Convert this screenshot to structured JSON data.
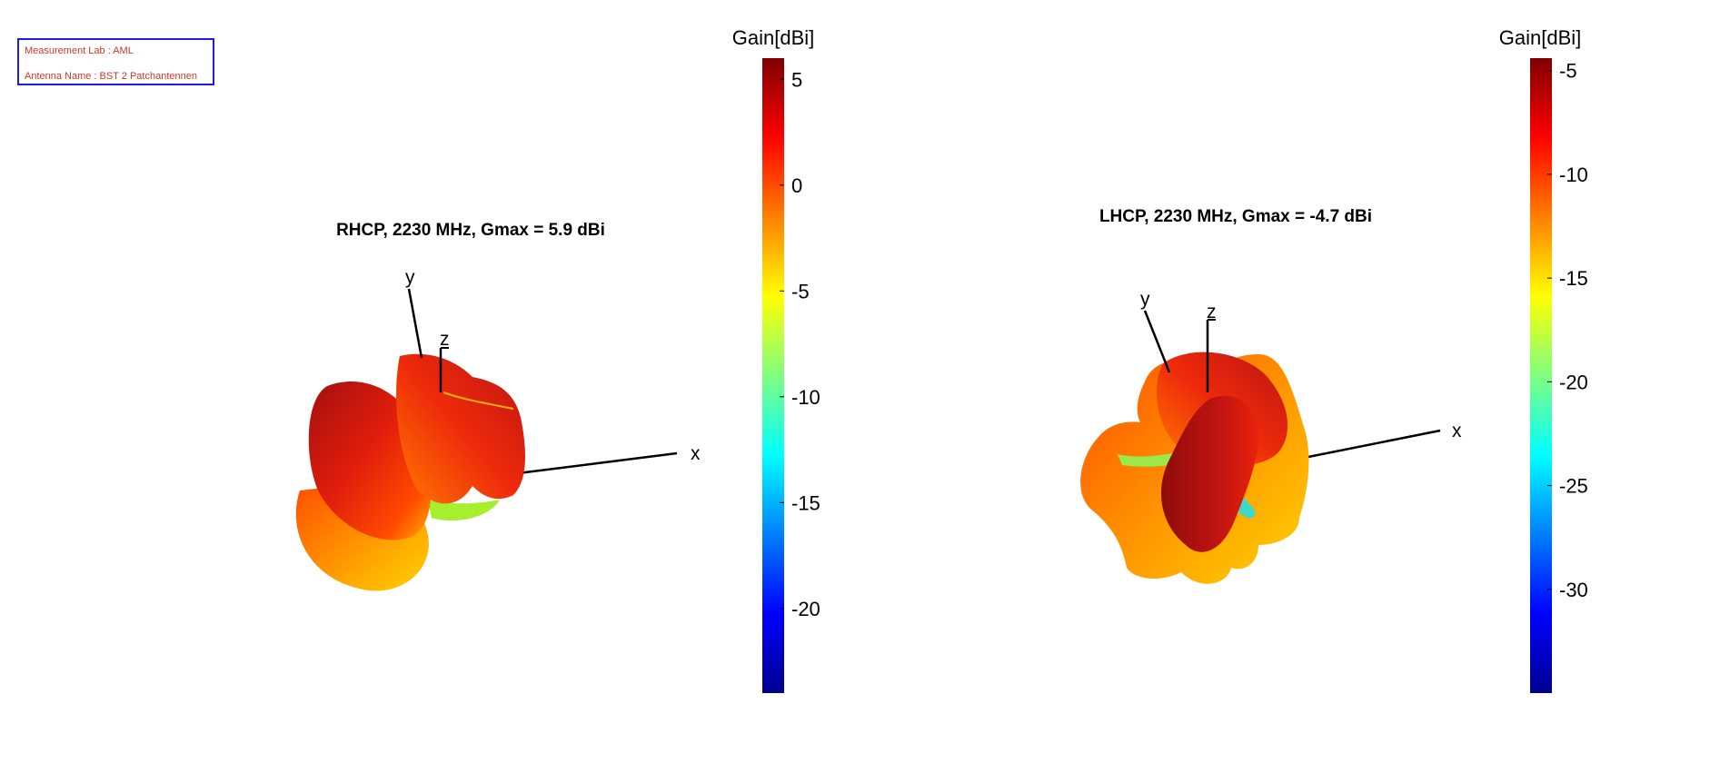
{
  "info": {
    "lab": "Measurement Lab : AML",
    "antenna": "Antenna Name : BST 2 Patchantennen"
  },
  "chart_data": [
    {
      "type": "3d-surface",
      "title": "RHCP, 2230 MHz, Gmax = 5.9 dBi",
      "axes": {
        "x": "x",
        "y": "y",
        "z": "z"
      },
      "colorbar": {
        "title": "Gain[dBi]",
        "range": [
          -24,
          6
        ],
        "ticks": [
          5,
          0,
          -5,
          -10,
          -15,
          -20
        ],
        "tick_labels": [
          "5",
          "0",
          "-5",
          "-10",
          "-15",
          "-20"
        ],
        "colormap": "jet"
      }
    },
    {
      "type": "3d-surface",
      "title": "LHCP, 2230 MHz, Gmax = -4.7 dBi",
      "axes": {
        "x": "x",
        "y": "y",
        "z": "z"
      },
      "colorbar": {
        "title": "Gain[dBi]",
        "range": [
          -35,
          -4.4
        ],
        "ticks": [
          -5,
          -10,
          -15,
          -20,
          -25,
          -30
        ],
        "tick_labels": [
          "-5",
          "-10",
          "-15",
          "-20",
          "-25",
          "-30"
        ],
        "colormap": "jet"
      }
    }
  ]
}
